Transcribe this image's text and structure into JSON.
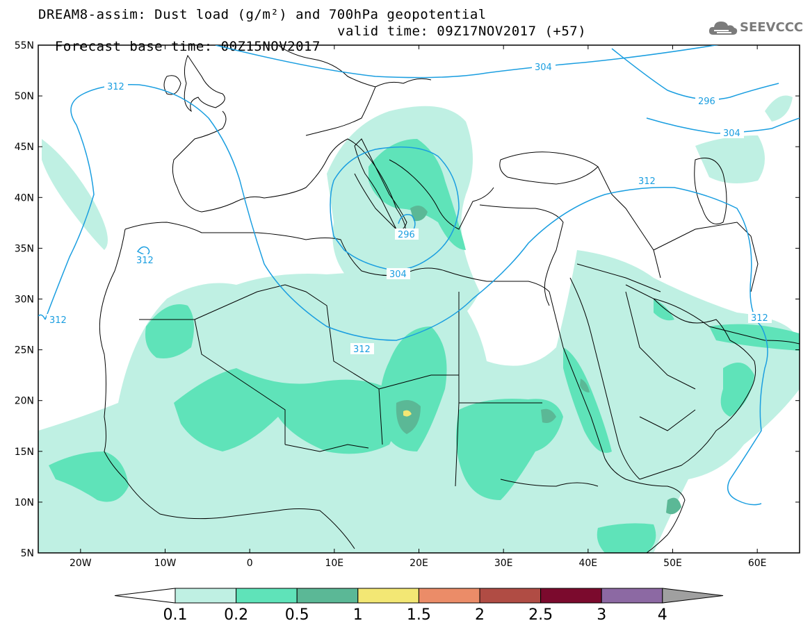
{
  "title": {
    "line1": "DREAM8-assim: Dust load (g/m²) and 700hPa geopotential",
    "base_time": "Forecast base time: 00Z15NOV2017",
    "valid_time": "valid time: 09Z17NOV2017 (+57)"
  },
  "logo": {
    "text": "SEEVCCC",
    "icon": "cloud-icon"
  },
  "axes": {
    "lat_labels": [
      "55N",
      "50N",
      "45N",
      "40N",
      "35N",
      "30N",
      "25N",
      "20N",
      "15N",
      "10N",
      "5N"
    ],
    "lon_labels": [
      "20W",
      "10W",
      "0",
      "10E",
      "20E",
      "30E",
      "40E",
      "50E",
      "60E"
    ]
  },
  "contour_labels": {
    "c304_north": "304",
    "c296_north": "296",
    "c304_east": "304",
    "c312_nw": "312",
    "c312_small": "312",
    "c312_west": "312",
    "c296_low": "296",
    "c304_low": "304",
    "c312_south": "312",
    "c312_turkey": "312",
    "c312_east": "312"
  },
  "colorbar": {
    "labels": [
      "0.1",
      "0.2",
      "0.5",
      "1",
      "1.5",
      "2",
      "2.5",
      "3",
      "4"
    ],
    "colors": [
      "#ffffff",
      "#bff0e3",
      "#5fe3b9",
      "#5bb896",
      "#f3e774",
      "#eb8c68",
      "#b04c44",
      "#7b0a2d",
      "#8c69a3",
      "#a0a0a0"
    ]
  },
  "colors": {
    "contour": "#1a9ee0",
    "border": "#000000"
  }
}
